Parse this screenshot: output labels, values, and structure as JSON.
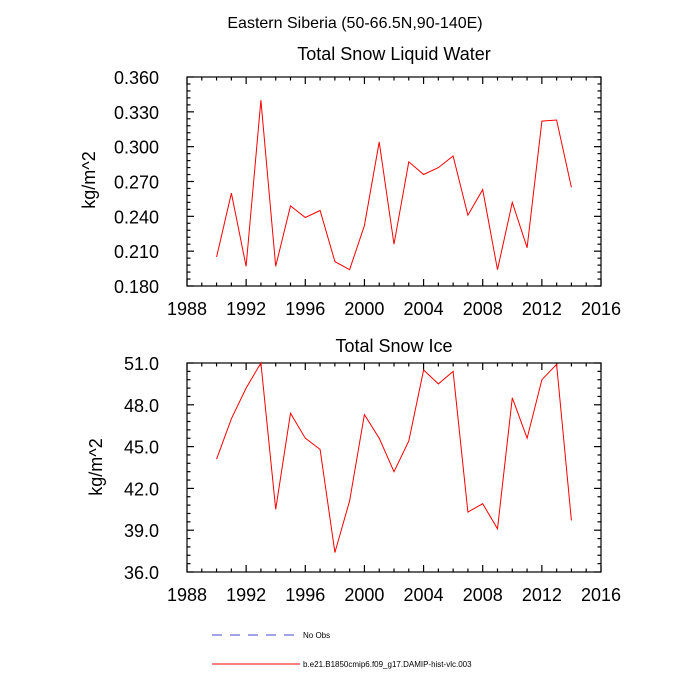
{
  "figure_title": "Eastern Siberia (50-66.5N,90-140E)",
  "legend": [
    {
      "label": "No Obs",
      "color": "#4444cc",
      "style": "dashed"
    },
    {
      "label": "b.e21.B1850cmip6.f09_g17.DAMIP-hist-vlc.003",
      "color": "#ff0000",
      "style": "solid"
    }
  ],
  "chart_data": [
    {
      "type": "line",
      "title": "Total Snow Liquid Water",
      "xlabel": "",
      "ylabel": "kg/m^2",
      "xlim": [
        1988,
        2016
      ],
      "ylim": [
        0.18,
        0.36
      ],
      "xticks": [
        1988,
        1992,
        1996,
        2000,
        2004,
        2008,
        2012,
        2016
      ],
      "xtick_labels": [
        "1988",
        "1992",
        "1996",
        "2000",
        "2004",
        "2008",
        "2012",
        "2016"
      ],
      "yticks": [
        0.18,
        0.21,
        0.24,
        0.27,
        0.3,
        0.33,
        0.36
      ],
      "ytick_labels": [
        "0.180",
        "0.210",
        "0.240",
        "0.270",
        "0.300",
        "0.330",
        "0.360"
      ],
      "series": [
        {
          "name": "b.e21.B1850cmip6.f09_g17.DAMIP-hist-vlc.003",
          "color": "#ff0000",
          "x": [
            1990,
            1991,
            1992,
            1993,
            1994,
            1995,
            1996,
            1997,
            1998,
            1999,
            2000,
            2001,
            2002,
            2003,
            2004,
            2005,
            2006,
            2007,
            2008,
            2009,
            2010,
            2011,
            2012,
            2013,
            2014
          ],
          "values": [
            0.205,
            0.26,
            0.197,
            0.34,
            0.197,
            0.249,
            0.239,
            0.245,
            0.201,
            0.194,
            0.232,
            0.304,
            0.216,
            0.287,
            0.276,
            0.282,
            0.292,
            0.241,
            0.263,
            0.194,
            0.252,
            0.213,
            0.322,
            0.323,
            0.265
          ]
        }
      ]
    },
    {
      "type": "line",
      "title": "Total Snow Ice",
      "xlabel": "",
      "ylabel": "kg/m^2",
      "xlim": [
        1988,
        2016
      ],
      "ylim": [
        36.0,
        51.0
      ],
      "xticks": [
        1988,
        1992,
        1996,
        2000,
        2004,
        2008,
        2012,
        2016
      ],
      "xtick_labels": [
        "1988",
        "1992",
        "1996",
        "2000",
        "2004",
        "2008",
        "2012",
        "2016"
      ],
      "yticks": [
        36.0,
        39.0,
        42.0,
        45.0,
        48.0,
        51.0
      ],
      "ytick_labels": [
        "36.0",
        "39.0",
        "42.0",
        "45.0",
        "48.0",
        "51.0"
      ],
      "series": [
        {
          "name": "b.e21.B1850cmip6.f09_g17.DAMIP-hist-vlc.003",
          "color": "#ff0000",
          "x": [
            1990,
            1991,
            1992,
            1993,
            1994,
            1995,
            1996,
            1997,
            1998,
            1999,
            2000,
            2001,
            2002,
            2003,
            2004,
            2005,
            2006,
            2007,
            2008,
            2009,
            2010,
            2011,
            2012,
            2013,
            2014
          ],
          "values": [
            44.1,
            47.0,
            49.2,
            51.0,
            40.5,
            47.4,
            45.6,
            44.8,
            37.4,
            41.1,
            47.3,
            45.6,
            43.2,
            45.4,
            50.5,
            49.5,
            50.4,
            40.3,
            40.9,
            39.1,
            48.5,
            45.6,
            49.8,
            50.9,
            39.7
          ]
        }
      ]
    }
  ]
}
